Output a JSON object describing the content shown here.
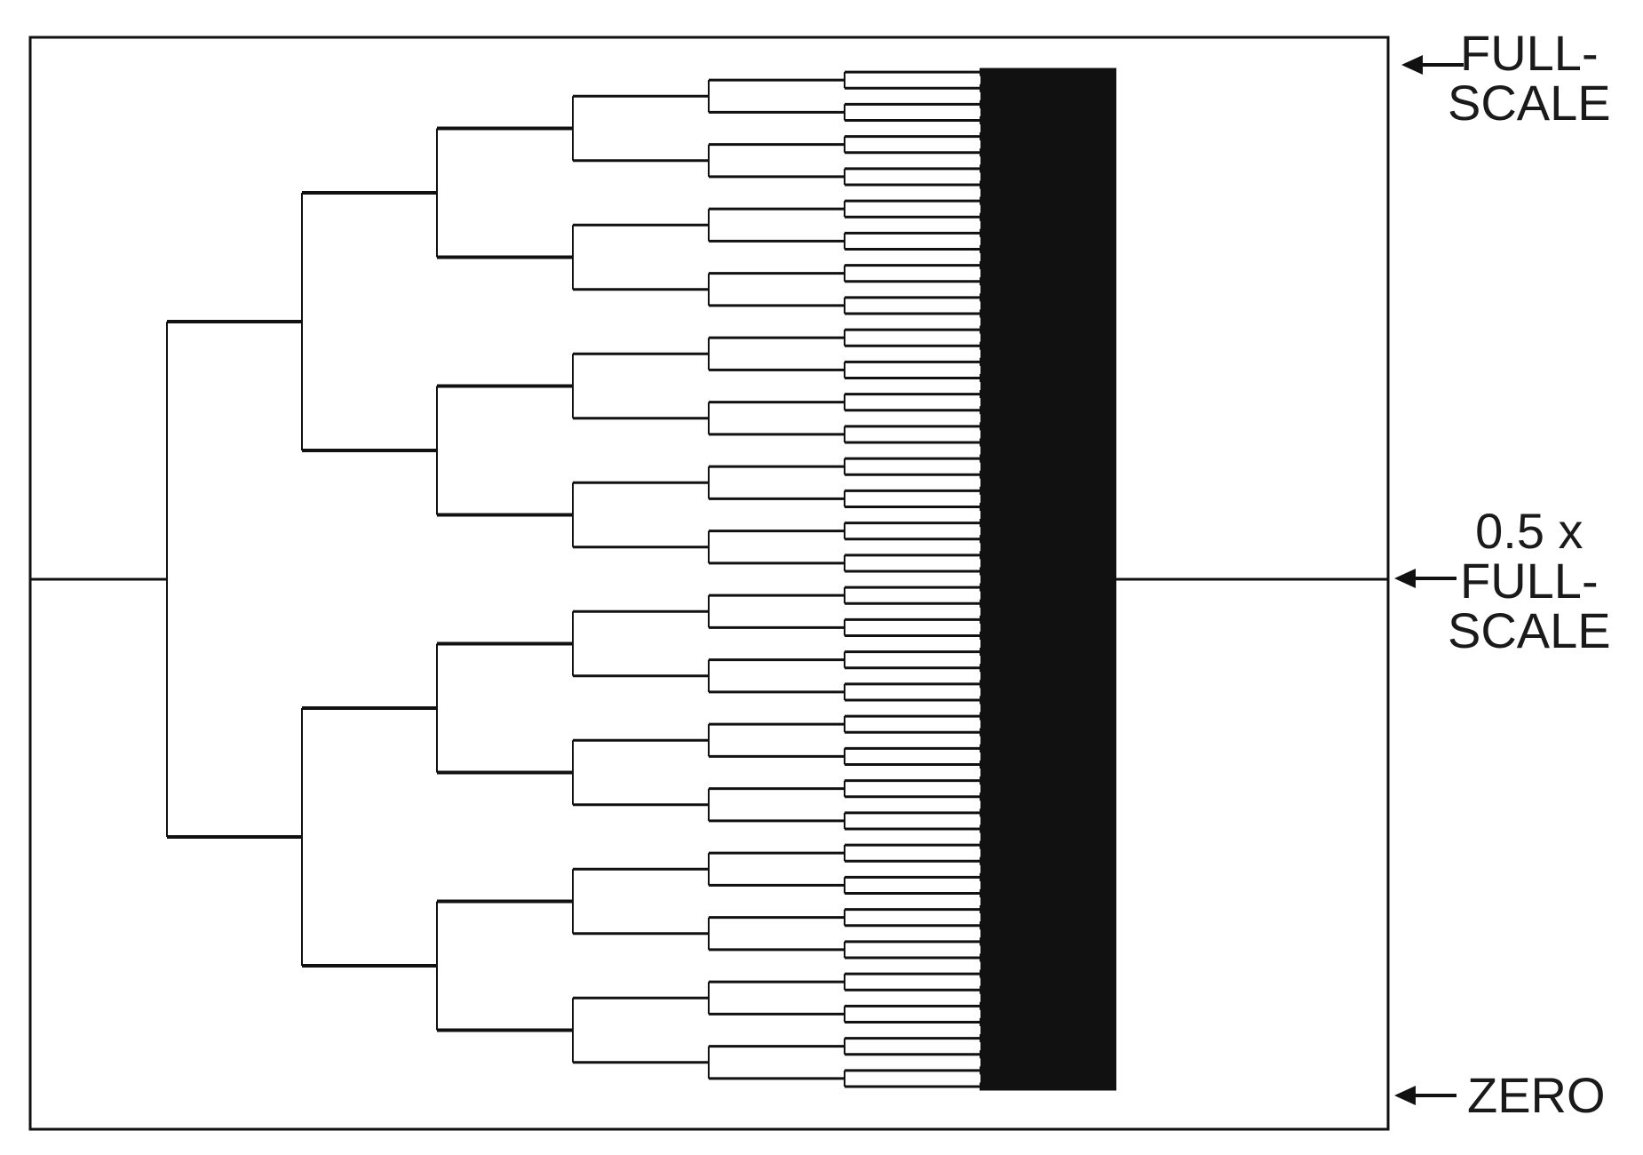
{
  "chart_data": {
    "type": "line",
    "title": "",
    "xlabel": "",
    "ylabel": "",
    "x_range": [
      0,
      9
    ],
    "ylim": [
      0,
      1
    ],
    "grid": false,
    "legend": "none",
    "description_series": "bisection waveform: levels split in two every time step",
    "levels": 8,
    "series": [
      {
        "time_step": 0,
        "y_values": [
          0.5
        ]
      },
      {
        "time_step": 1,
        "y_values": [
          0.25,
          0.75
        ]
      },
      {
        "time_step": 2,
        "y_values": [
          0.125,
          0.375,
          0.625,
          0.875
        ]
      },
      {
        "time_step": 3,
        "y_values": [
          0.0625,
          0.1875,
          0.3125,
          0.4375,
          0.5625,
          0.6875,
          0.8125,
          0.9375
        ]
      },
      {
        "time_step": 8,
        "y_values": [
          0.5
        ]
      }
    ],
    "annotations": [
      {
        "id": "full-scale",
        "lines": [
          "FULL-",
          "SCALE"
        ],
        "y": 1.0
      },
      {
        "id": "half-scale",
        "lines": [
          "0.5 x",
          "FULL-",
          "SCALE"
        ],
        "y": 0.5
      },
      {
        "id": "zero",
        "lines": [
          "ZERO"
        ],
        "y": 0.0
      }
    ],
    "colors": {
      "trace": "#111111",
      "frame": "#111111",
      "background": "#ffffff"
    }
  }
}
